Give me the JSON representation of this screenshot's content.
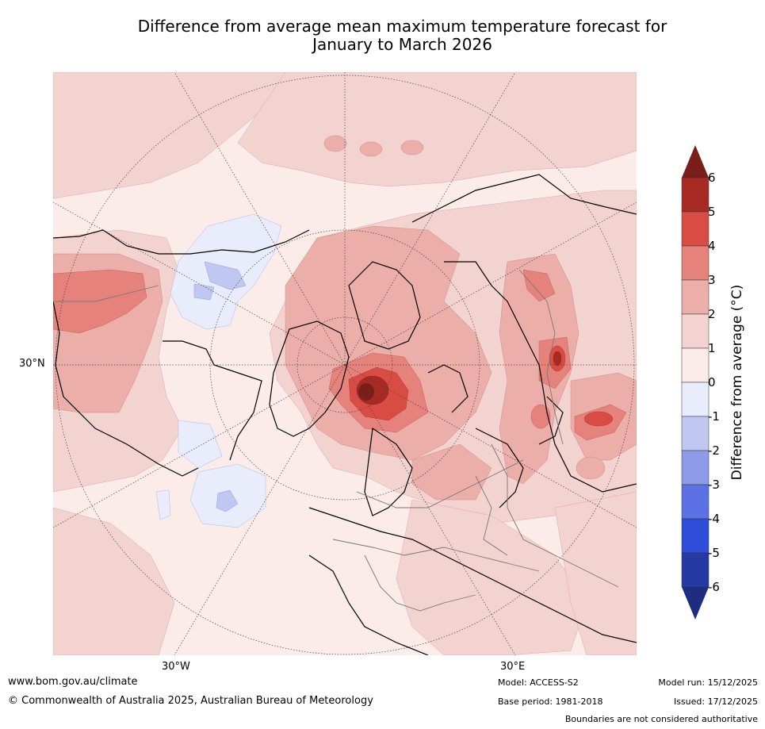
{
  "title": {
    "line1": "Difference from average mean maximum temperature forecast for",
    "line2": "January to March 2026"
  },
  "axis_labels": {
    "lat_30n": "30°N",
    "lon_30w": "30°W",
    "lon_30e": "30°E"
  },
  "colorbar": {
    "label": "Difference from average ($^\\circ$C)",
    "label_display": "Difference from average (°C)",
    "ticks": [
      "6",
      "5",
      "4",
      "3",
      "2",
      "1",
      "0",
      "-1",
      "-2",
      "-3",
      "-4",
      "-5",
      "-6"
    ],
    "colors": {
      "above": "#7a1e19",
      "5_6": "#a72a24",
      "4_5": "#d94c43",
      "3_4": "#e5827b",
      "2_3": "#ecaea8",
      "1_2": "#f3d3d0",
      "0_1": "#fbebe9",
      "m1_0": "#e8ecfb",
      "m2_m1": "#c0c8f2",
      "m3_m2": "#8c9bea",
      "m4_m3": "#5b71e4",
      "m5_m4": "#2e4ed9",
      "m6_m5": "#253aa5",
      "below": "#1f2d80"
    }
  },
  "footer": {
    "website": "www.bom.gov.au/climate",
    "copyright": "© Commonwealth of Australia 2025, Australian Bureau of Meteorology",
    "model": "Model: ACCESS-S2",
    "base_period": "Base period: 1981-2018",
    "model_run": "Model run: 15/12/2025",
    "issued": "Issued: 17/12/2025",
    "disclaimer": "Boundaries are not considered authoritative"
  }
}
